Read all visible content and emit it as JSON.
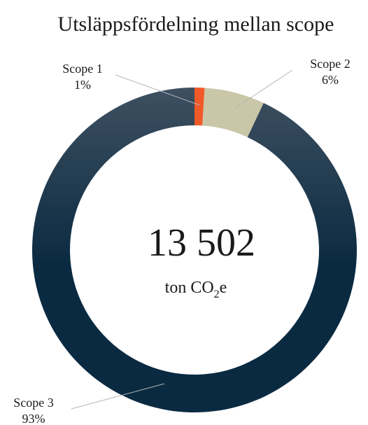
{
  "chart_data": {
    "type": "donut",
    "title": "Utsläppsfördelning mellan scope",
    "categories": [
      "Scope 1",
      "Scope 2",
      "Scope 3"
    ],
    "values": [
      1,
      6,
      93
    ],
    "value_labels": [
      "1%",
      "6%",
      "93%"
    ],
    "colors": [
      "#f05a28",
      "#c9c7a8",
      "#0c2c43"
    ],
    "gradient": [
      "#3e5061",
      "#0a2a41"
    ],
    "center_value": "13 502",
    "center_unit_parts": [
      "ton CO",
      "2",
      "e"
    ]
  }
}
